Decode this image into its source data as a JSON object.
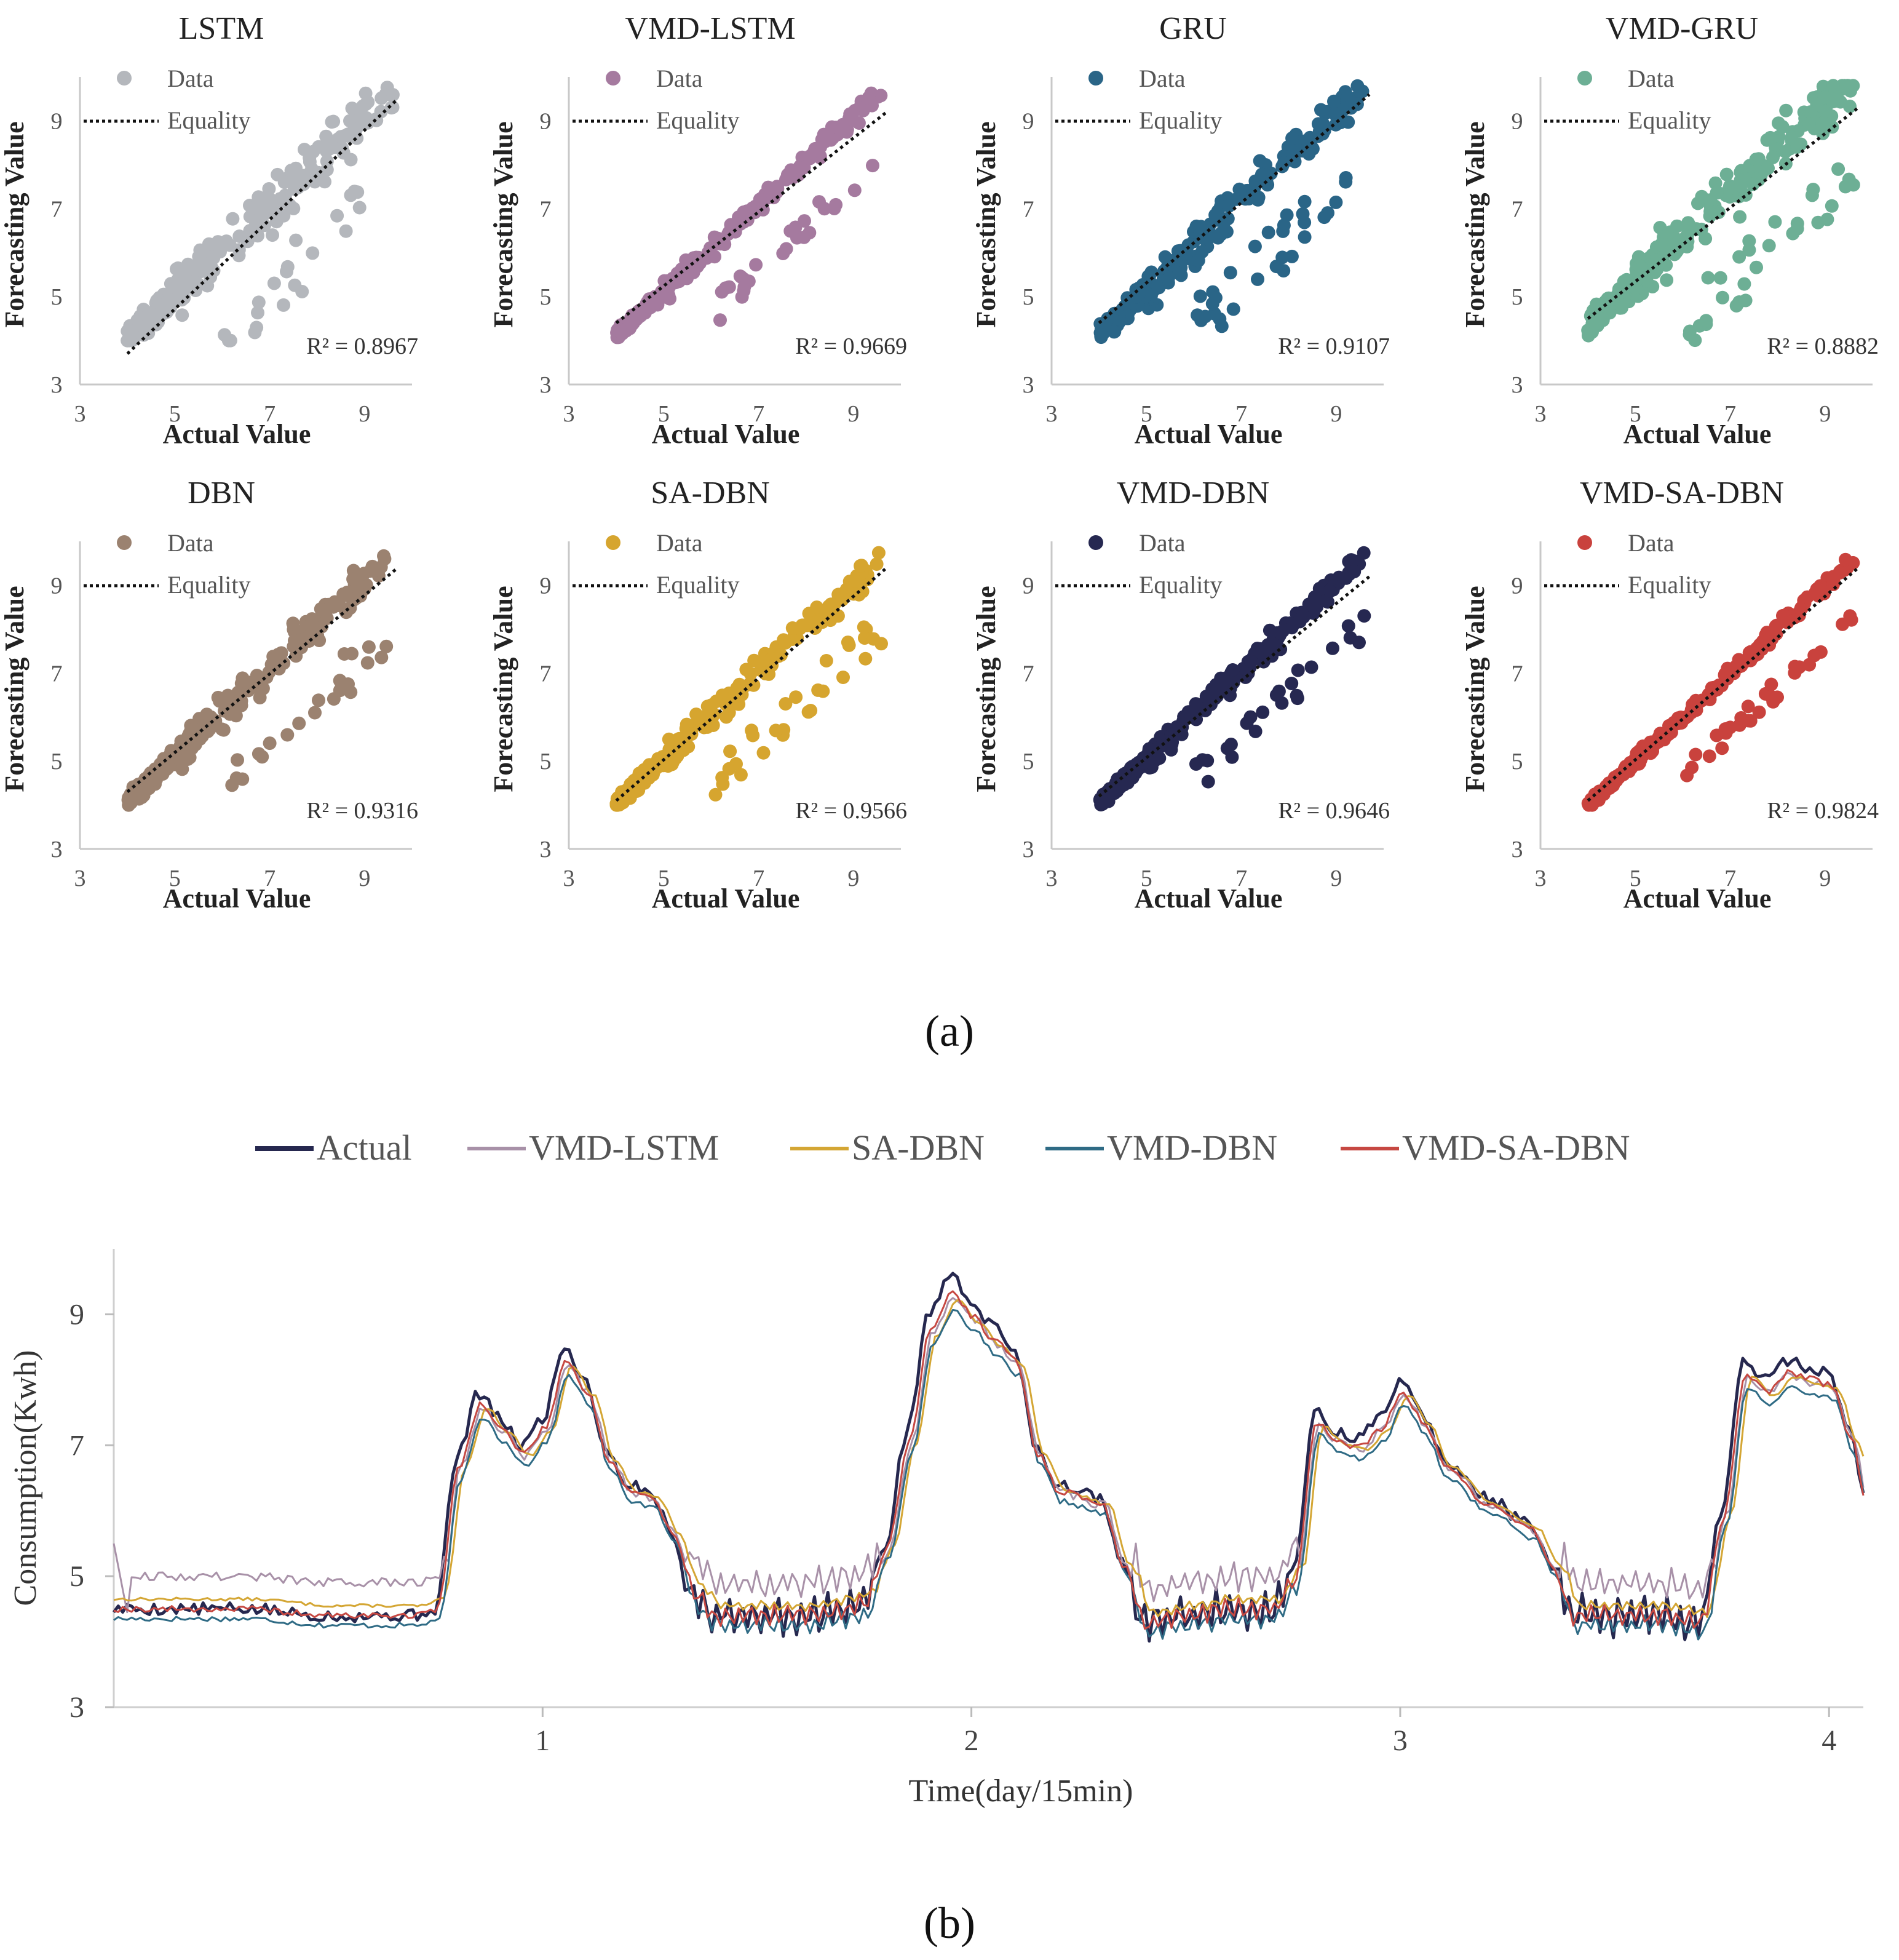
{
  "figure": {
    "label_a": "(a)",
    "label_b": "(b)"
  },
  "chart_data": [
    {
      "type": "scatter",
      "title": "LSTM",
      "color": "#b4b7bc",
      "r2_label": "R² = 0.8967",
      "r2": 0.8967,
      "xlabel": "Actual Value",
      "ylabel": "Forecasting Value",
      "xlim": [
        3,
        10
      ],
      "ylim": [
        3,
        10
      ],
      "xticks": [
        3,
        5,
        7,
        9
      ],
      "yticks": [
        3,
        5,
        7,
        9
      ],
      "legend": [
        "Data",
        "Equality"
      ],
      "seed": 11,
      "noise": 0.55,
      "bias": 0.05,
      "equality_line": [
        [
          4.0,
          3.7
        ],
        [
          9.7,
          9.5
        ]
      ]
    },
    {
      "type": "scatter",
      "title": "VMD-LSTM",
      "color": "#a57a9f",
      "r2_label": "R² = 0.9669",
      "r2": 0.9669,
      "xlabel": "Actual Value",
      "ylabel": "Forecasting Value",
      "xlim": [
        3,
        10
      ],
      "ylim": [
        3,
        10
      ],
      "xticks": [
        3,
        5,
        7,
        9
      ],
      "yticks": [
        3,
        5,
        7,
        9
      ],
      "legend": [
        "Data",
        "Equality"
      ],
      "seed": 23,
      "noise": 0.22,
      "bias": 0.1,
      "equality_line": [
        [
          4.0,
          4.4
        ],
        [
          9.7,
          9.2
        ]
      ]
    },
    {
      "type": "scatter",
      "title": "GRU",
      "color": "#2a6587",
      "r2_label": "R² = 0.9107",
      "r2": 0.9107,
      "xlabel": "Actual Value",
      "ylabel": "Forecasting Value",
      "xlim": [
        3,
        10
      ],
      "ylim": [
        3,
        10
      ],
      "xticks": [
        3,
        5,
        7,
        9
      ],
      "yticks": [
        3,
        5,
        7,
        9
      ],
      "legend": [
        "Data",
        "Equality"
      ],
      "seed": 37,
      "noise": 0.42,
      "bias": 0.15,
      "equality_line": [
        [
          4.0,
          4.4
        ],
        [
          9.7,
          9.6
        ]
      ]
    },
    {
      "type": "scatter",
      "title": "VMD-GRU",
      "color": "#6daf95",
      "r2_label": "R² = 0.8882",
      "r2": 0.8882,
      "xlabel": "Actual Value",
      "ylabel": "Forecasting Value",
      "xlim": [
        3,
        10
      ],
      "ylim": [
        3,
        10
      ],
      "xticks": [
        3,
        5,
        7,
        9
      ],
      "yticks": [
        3,
        5,
        7,
        9
      ],
      "legend": [
        "Data",
        "Equality"
      ],
      "seed": 41,
      "noise": 0.48,
      "bias": 0.35,
      "equality_line": [
        [
          4.0,
          4.5
        ],
        [
          9.7,
          9.3
        ]
      ]
    },
    {
      "type": "scatter",
      "title": "DBN",
      "color": "#9b8270",
      "r2_label": "R² = 0.9316",
      "r2": 0.9316,
      "xlabel": "Actual Value",
      "ylabel": "Forecasting Value",
      "xlim": [
        3,
        10
      ],
      "ylim": [
        3,
        10
      ],
      "xticks": [
        3,
        5,
        7,
        9
      ],
      "yticks": [
        3,
        5,
        7,
        9
      ],
      "legend": [
        "Data",
        "Equality"
      ],
      "seed": 53,
      "noise": 0.38,
      "bias": 0.1,
      "equality_line": [
        [
          4.0,
          4.3
        ],
        [
          9.7,
          9.4
        ]
      ]
    },
    {
      "type": "scatter",
      "title": "SA-DBN",
      "color": "#d6a52f",
      "r2_label": "R² = 0.9566",
      "r2": 0.9566,
      "xlabel": "Actual Value",
      "ylabel": "Forecasting Value",
      "xlim": [
        3,
        10
      ],
      "ylim": [
        3,
        10
      ],
      "xticks": [
        3,
        5,
        7,
        9
      ],
      "yticks": [
        3,
        5,
        7,
        9
      ],
      "legend": [
        "Data",
        "Equality"
      ],
      "seed": 67,
      "noise": 0.3,
      "bias": 0.05,
      "equality_line": [
        [
          4.0,
          4.1
        ],
        [
          9.7,
          9.4
        ]
      ]
    },
    {
      "type": "scatter",
      "title": "VMD-DBN",
      "color": "#262851",
      "r2_label": "R² = 0.9646",
      "r2": 0.9646,
      "xlabel": "Actual Value",
      "ylabel": "Forecasting Value",
      "xlim": [
        3,
        10
      ],
      "ylim": [
        3,
        10
      ],
      "xticks": [
        3,
        5,
        7,
        9
      ],
      "yticks": [
        3,
        5,
        7,
        9
      ],
      "legend": [
        "Data",
        "Equality"
      ],
      "seed": 71,
      "noise": 0.24,
      "bias": 0.05,
      "equality_line": [
        [
          4.0,
          4.2
        ],
        [
          9.7,
          9.2
        ]
      ]
    },
    {
      "type": "scatter",
      "title": "VMD-SA-DBN",
      "color": "#c9423d",
      "r2_label": "R² = 0.9824",
      "r2": 0.9824,
      "xlabel": "Actual Value",
      "ylabel": "Forecasting Value",
      "xlim": [
        3,
        10
      ],
      "ylim": [
        3,
        10
      ],
      "xticks": [
        3,
        5,
        7,
        9
      ],
      "yticks": [
        3,
        5,
        7,
        9
      ],
      "legend": [
        "Data",
        "Equality"
      ],
      "seed": 83,
      "noise": 0.16,
      "bias": 0.0,
      "equality_line": [
        [
          4.0,
          4.1
        ],
        [
          9.7,
          9.4
        ]
      ]
    },
    {
      "type": "line",
      "title": "",
      "xlabel": "Time(day/15min)",
      "ylabel": "Consumption(Kwh)",
      "xlim": [
        0,
        4.08
      ],
      "ylim": [
        3,
        10
      ],
      "xticks": [
        1,
        2,
        3,
        4
      ],
      "yticks": [
        3,
        5,
        7,
        9
      ],
      "legend_position": "top",
      "actual_profile": [
        [
          0,
          4.5
        ],
        [
          0.1,
          4.5
        ],
        [
          0.3,
          4.5
        ],
        [
          0.5,
          4.4
        ],
        [
          0.7,
          4.4
        ],
        [
          0.75,
          4.5
        ],
        [
          0.8,
          6.8
        ],
        [
          0.85,
          7.8
        ],
        [
          0.9,
          7.4
        ],
        [
          0.95,
          7.0
        ],
        [
          1.0,
          7.4
        ],
        [
          1.05,
          8.5
        ],
        [
          1.1,
          8.0
        ],
        [
          1.15,
          6.9
        ],
        [
          1.2,
          6.4
        ],
        [
          1.25,
          6.3
        ],
        [
          1.3,
          5.7
        ],
        [
          1.35,
          4.7
        ],
        [
          1.4,
          4.4
        ],
        [
          1.5,
          4.4
        ],
        [
          1.6,
          4.4
        ],
        [
          1.7,
          4.5
        ],
        [
          1.75,
          4.6
        ],
        [
          1.8,
          5.5
        ],
        [
          1.85,
          7.2
        ],
        [
          1.9,
          9.0
        ],
        [
          1.95,
          9.6
        ],
        [
          2.0,
          9.2
        ],
        [
          2.05,
          8.8
        ],
        [
          2.1,
          8.5
        ],
        [
          2.15,
          7.0
        ],
        [
          2.2,
          6.4
        ],
        [
          2.3,
          6.2
        ],
        [
          2.35,
          5.2
        ],
        [
          2.4,
          4.3
        ],
        [
          2.5,
          4.4
        ],
        [
          2.6,
          4.5
        ],
        [
          2.7,
          4.5
        ],
        [
          2.75,
          5.0
        ],
        [
          2.8,
          7.5
        ],
        [
          2.85,
          7.2
        ],
        [
          2.9,
          7.1
        ],
        [
          2.95,
          7.4
        ],
        [
          3.0,
          8.0
        ],
        [
          3.05,
          7.5
        ],
        [
          3.1,
          6.8
        ],
        [
          3.2,
          6.2
        ],
        [
          3.3,
          5.8
        ],
        [
          3.35,
          5.2
        ],
        [
          3.4,
          4.4
        ],
        [
          3.5,
          4.4
        ],
        [
          3.6,
          4.4
        ],
        [
          3.7,
          4.3
        ],
        [
          3.75,
          6.0
        ],
        [
          3.8,
          8.3
        ],
        [
          3.85,
          8.0
        ],
        [
          3.9,
          8.3
        ],
        [
          3.95,
          8.2
        ],
        [
          4.0,
          8.1
        ],
        [
          4.05,
          7.2
        ],
        [
          4.08,
          6.3
        ]
      ],
      "series": [
        {
          "name": "Actual",
          "color": "#26284f",
          "width": 5,
          "seed": 5,
          "offset": 0.0,
          "jitter": 0.16,
          "low_offset": 0.0,
          "lag": 0.0,
          "peak_scale": 1.0
        },
        {
          "name": "VMD-LSTM",
          "color": "#a891a8",
          "width": 3,
          "seed": 9,
          "offset": 0.0,
          "jitter": 0.12,
          "low_offset": 0.5,
          "lag": 0.01,
          "peak_scale": 0.94
        },
        {
          "name": "SA-DBN",
          "color": "#d4a634",
          "width": 3,
          "seed": 13,
          "offset": 0.05,
          "jitter": 0.04,
          "low_offset": 0.1,
          "lag": 0.02,
          "peak_scale": 0.92
        },
        {
          "name": "VMD-DBN",
          "color": "#2f6b85",
          "width": 3,
          "seed": 17,
          "offset": -0.1,
          "jitter": 0.07,
          "low_offset": -0.05,
          "lag": 0.01,
          "peak_scale": 0.92
        },
        {
          "name": "VMD-SA-DBN",
          "color": "#c64842",
          "width": 3,
          "seed": 19,
          "offset": 0.0,
          "jitter": 0.08,
          "low_offset": 0.0,
          "lag": 0.005,
          "peak_scale": 0.95
        }
      ]
    }
  ]
}
